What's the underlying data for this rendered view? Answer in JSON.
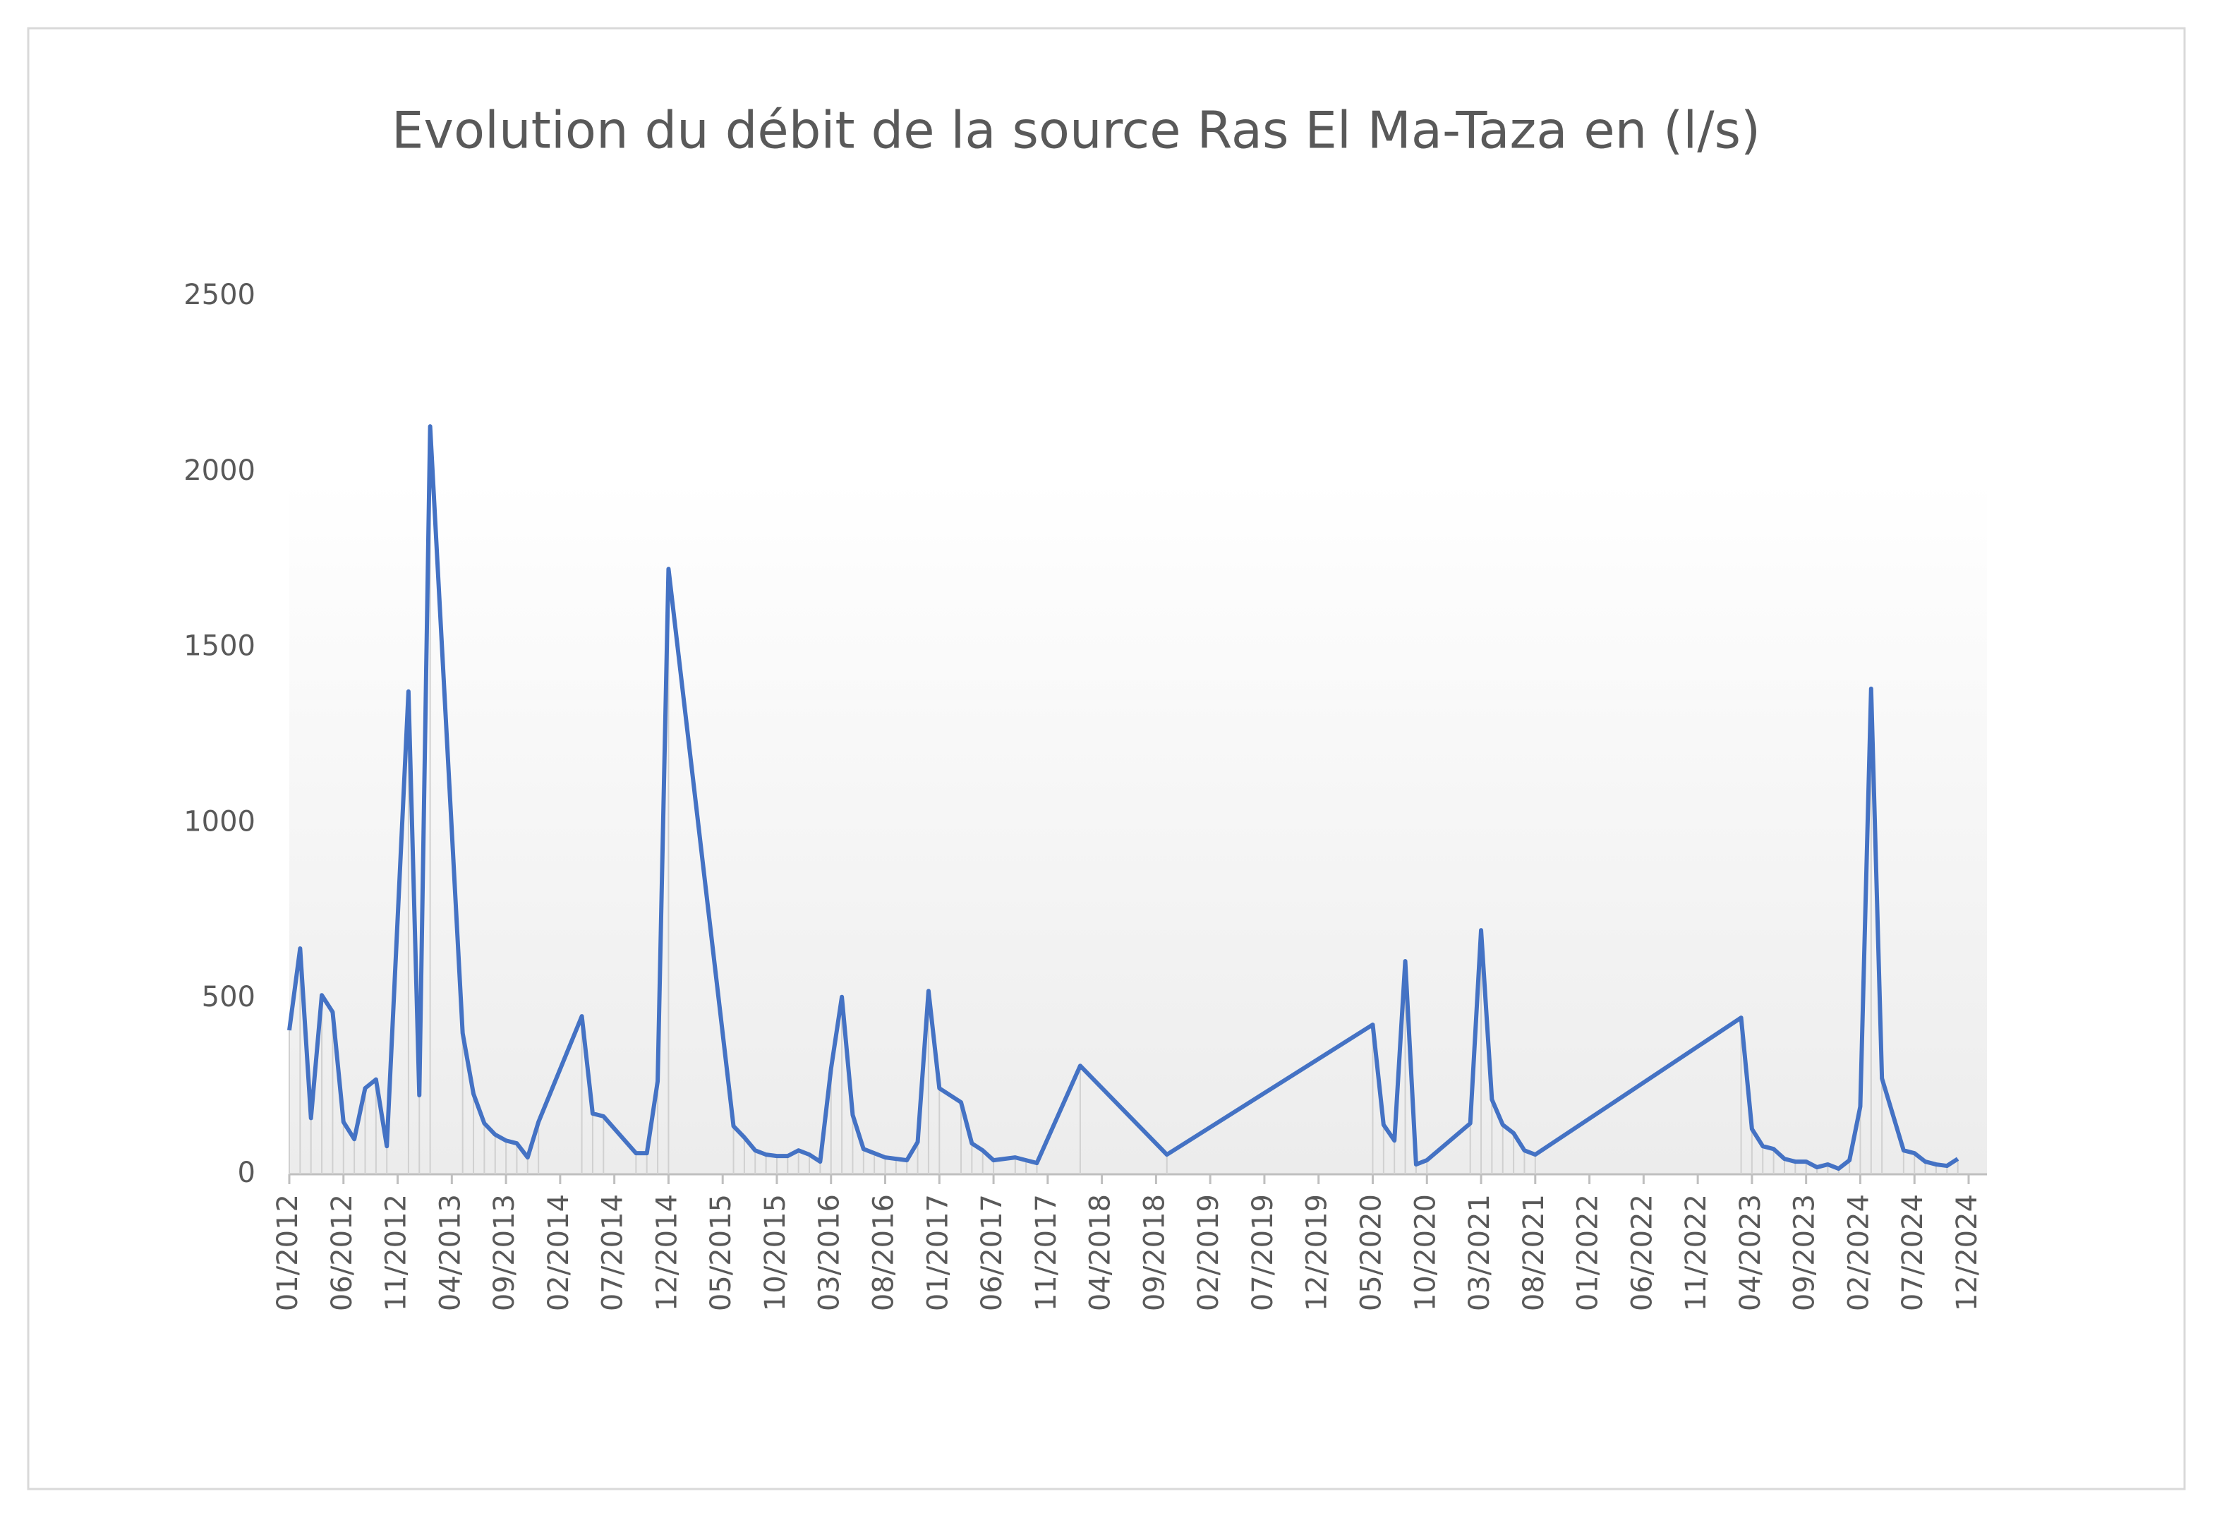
{
  "chart_data": {
    "type": "line",
    "title": "Evolution du débit de la source Ras El Ma-Taza en (l/s)",
    "x": [
      "01/2012",
      "02/2012",
      "03/2012",
      "04/2012",
      "05/2012",
      "06/2012",
      "07/2012",
      "08/2012",
      "09/2012",
      "10/2012",
      "12/2012",
      "01/2013",
      "02/2013",
      "05/2013",
      "06/2013",
      "07/2013",
      "08/2013",
      "09/2013",
      "10/2013",
      "11/2013",
      "12/2013",
      "04/2014",
      "05/2014",
      "06/2014",
      "09/2014",
      "10/2014",
      "11/2014",
      "12/2014",
      "06/2015",
      "07/2015",
      "08/2015",
      "09/2015",
      "10/2015",
      "11/2015",
      "12/2015",
      "01/2016",
      "02/2016",
      "03/2016",
      "04/2016",
      "05/2016",
      "06/2016",
      "07/2016",
      "08/2016",
      "09/2016",
      "10/2016",
      "11/2016",
      "12/2016",
      "01/2017",
      "03/2017",
      "04/2017",
      "05/2017",
      "06/2017",
      "08/2017",
      "09/2017",
      "10/2017",
      "02/2018",
      "10/2018",
      "05/2020",
      "06/2020",
      "07/2020",
      "08/2020",
      "09/2020",
      "10/2020",
      "02/2021",
      "03/2021",
      "04/2021",
      "05/2021",
      "06/2021",
      "07/2021",
      "08/2021",
      "03/2023",
      "04/2023",
      "05/2023",
      "06/2023",
      "07/2023",
      "08/2023",
      "09/2023",
      "10/2023",
      "11/2023",
      "12/2023",
      "01/2024",
      "02/2024",
      "03/2024",
      "04/2024",
      "06/2024",
      "07/2024",
      "08/2024",
      "09/2024",
      "10/2024",
      "11/2024"
    ],
    "series": [
      {
        "name": "Débit (l/s)",
        "color": "#4472c4",
        "values": [
          410,
          643,
          160,
          510,
          462,
          149,
          100,
          245,
          270,
          80,
          1375,
          225,
          2130,
          402,
          229,
          145,
          113,
          96,
          88,
          48,
          149,
          450,
          173,
          165,
          60,
          60,
          265,
          1724,
          137,
          105,
          68,
          56,
          52,
          52,
          68,
          56,
          36,
          300,
          505,
          169,
          72,
          60,
          48,
          44,
          40,
          92,
          522,
          245,
          205,
          88,
          68,
          40,
          48,
          40,
          32,
          309,
          56,
          426,
          141,
          96,
          607,
          28,
          40,
          145,
          695,
          213,
          141,
          117,
          68,
          56,
          446,
          129,
          80,
          72,
          44,
          36,
          36,
          20,
          28,
          16,
          40,
          193,
          1383,
          273,
          68,
          60,
          36,
          28,
          24,
          44
        ]
      }
    ],
    "xlim": [
      "01/2012",
      "12/2024"
    ],
    "xticks": [
      "01/2012",
      "06/2012",
      "11/2012",
      "04/2013",
      "09/2013",
      "02/2014",
      "07/2014",
      "12/2014",
      "05/2015",
      "10/2015",
      "03/2016",
      "08/2016",
      "01/2017",
      "06/2017",
      "11/2017",
      "04/2018",
      "09/2018",
      "02/2019",
      "07/2019",
      "12/2019",
      "05/2020",
      "10/2020",
      "03/2021",
      "08/2021",
      "01/2022",
      "06/2022",
      "11/2022",
      "04/2023",
      "09/2023",
      "02/2024",
      "07/2024",
      "12/2024"
    ],
    "ylim": [
      0,
      2500
    ],
    "yticks": [
      0,
      500,
      1000,
      1500,
      2000,
      2500
    ],
    "drop_lines": true
  }
}
